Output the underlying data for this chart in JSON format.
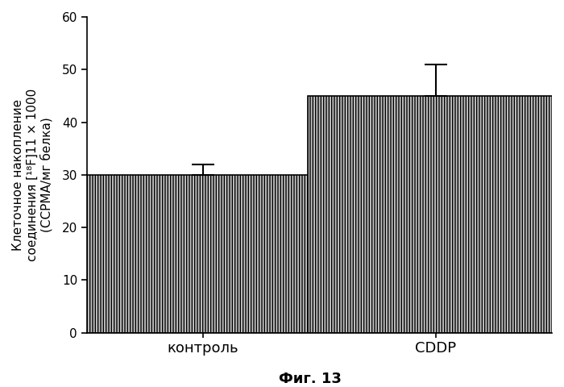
{
  "categories": [
    "контроль",
    "CDDP"
  ],
  "values": [
    30,
    45
  ],
  "yerr_up": [
    2,
    6
  ],
  "yerr_down": [
    0,
    0
  ],
  "ylim": [
    0,
    60
  ],
  "yticks": [
    0,
    10,
    20,
    30,
    40,
    50,
    60
  ],
  "ylabel_line1": "Клеточное накопление",
  "ylabel_line2": "соединения [¹⁸F]11 × 1000",
  "ylabel_line3": "(ССРМА/мг белка)",
  "caption": "Фиг. 13",
  "hatch": "|||",
  "bar_facecolor": "#b0b0b0",
  "background_color": "#ffffff",
  "bar_width": 0.55,
  "x_positions": [
    0.25,
    0.75
  ],
  "xlim": [
    0.0,
    1.0
  ],
  "figsize": [
    7.0,
    4.8
  ],
  "dpi": 100
}
